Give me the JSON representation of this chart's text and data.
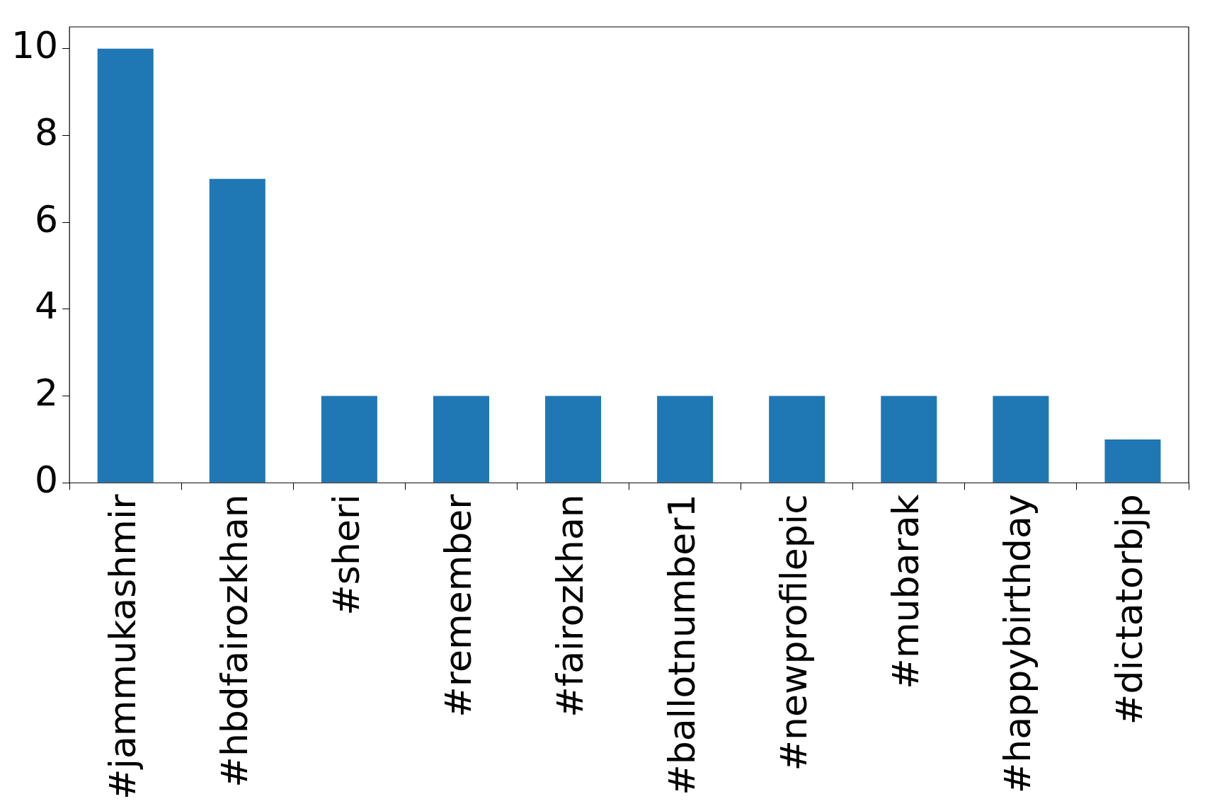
{
  "chart_data": {
    "type": "bar",
    "categories": [
      "#jammukashmir",
      "#hbdfairozkhan",
      "#sheri",
      "#remember",
      "#fairozkhan",
      "#ballotnumber1",
      "#newprofilepic",
      "#mubarak",
      "#happybirthday",
      "#dictatorbjp"
    ],
    "values": [
      10,
      7,
      2,
      2,
      2,
      2,
      2,
      2,
      2,
      1
    ],
    "color": "#1f77b4",
    "ylim": [
      0,
      10.5
    ],
    "yticks": [
      0,
      2,
      4,
      6,
      8,
      10
    ],
    "grid": false,
    "legend": false
  }
}
